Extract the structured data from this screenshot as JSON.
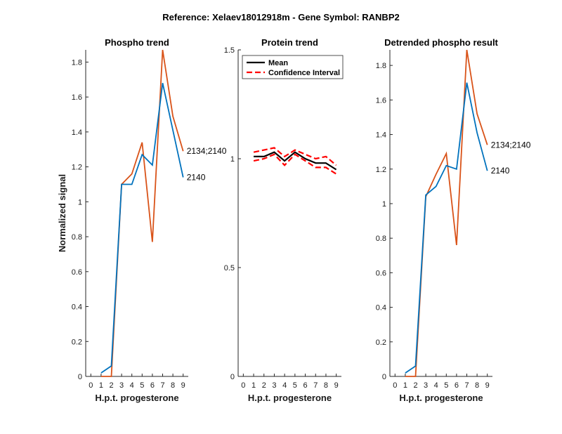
{
  "figure_title": "Reference:  Xelaev18012918m - Gene Symbol:  RANBP2",
  "colors": {
    "blue": "#0072BD",
    "orange": "#D95319",
    "black": "#000000",
    "red": "#FF0000"
  },
  "chart_data": [
    {
      "type": "line",
      "title": "Phospho trend",
      "xlabel": "H.p.t. progesterone",
      "ylabel": "Normalized signal",
      "x": [
        0,
        1,
        2,
        3,
        4,
        5,
        6,
        7,
        8,
        9
      ],
      "xlim": [
        -0.5,
        9.5
      ],
      "ylim": [
        0,
        1.87
      ],
      "xticks": [
        0,
        1,
        2,
        3,
        4,
        5,
        6,
        7,
        8,
        9
      ],
      "yticks": [
        0,
        0.2,
        0.4,
        0.6,
        0.8,
        1,
        1.2,
        1.4,
        1.6,
        1.8
      ],
      "ytick_labels": [
        "0",
        "0.2",
        "0.4",
        "0.6",
        "0.8",
        "1",
        "1.2",
        "1.4",
        "1.6",
        "1.8"
      ],
      "series": [
        {
          "name": "2134;2140",
          "color": "#D95319",
          "values": [
            null,
            0,
            0,
            1.1,
            1.16,
            1.34,
            0.77,
            1.87,
            1.49,
            1.29
          ]
        },
        {
          "name": "2140",
          "color": "#0072BD",
          "values": [
            null,
            0.02,
            0.06,
            1.1,
            1.1,
            1.27,
            1.21,
            1.68,
            1.41,
            1.14
          ]
        }
      ]
    },
    {
      "type": "line",
      "title": "Protein trend",
      "xlabel": "H.p.t. progesterone",
      "ylabel": "",
      "x": [
        0,
        1,
        2,
        3,
        4,
        5,
        6,
        7,
        8,
        9
      ],
      "xlim": [
        -0.5,
        9.5
      ],
      "ylim": [
        0,
        1.5
      ],
      "xticks": [
        0,
        1,
        2,
        3,
        4,
        5,
        6,
        7,
        8,
        9
      ],
      "yticks": [
        0,
        0.5,
        1,
        1.5
      ],
      "ytick_labels": [
        "0",
        "0.5",
        "1",
        "1.5"
      ],
      "legend": {
        "placement": "top-left",
        "entries": [
          "Mean",
          "Confidence Interval"
        ]
      },
      "series": [
        {
          "name": "Mean",
          "color": "#000000",
          "style": "solid",
          "values": [
            null,
            1.01,
            1.01,
            1.03,
            0.99,
            1.03,
            1.0,
            0.98,
            0.98,
            0.95
          ]
        },
        {
          "name": "Confidence Interval",
          "color": "#FF0000",
          "style": "dashed",
          "values": [
            null,
            1.03,
            1.04,
            1.05,
            1.01,
            1.04,
            1.02,
            1.0,
            1.01,
            0.97
          ]
        },
        {
          "name": "Confidence Interval",
          "color": "#FF0000",
          "style": "dashed",
          "values": [
            null,
            0.99,
            1.0,
            1.02,
            0.97,
            1.02,
            0.99,
            0.96,
            0.96,
            0.93
          ]
        }
      ]
    },
    {
      "type": "line",
      "title": "Detrended phospho result",
      "xlabel": "H.p.t. progesterone",
      "ylabel": "",
      "x": [
        0,
        1,
        2,
        3,
        4,
        5,
        6,
        7,
        8,
        9
      ],
      "xlim": [
        -0.5,
        9.5
      ],
      "ylim": [
        0,
        1.89
      ],
      "xticks": [
        0,
        1,
        2,
        3,
        4,
        5,
        6,
        7,
        8,
        9
      ],
      "yticks": [
        0,
        0.2,
        0.4,
        0.6,
        0.8,
        1,
        1.2,
        1.4,
        1.6,
        1.8
      ],
      "ytick_labels": [
        "0",
        "0.2",
        "0.4",
        "0.6",
        "0.8",
        "1",
        "1.2",
        "1.4",
        "1.6",
        "1.8"
      ],
      "series": [
        {
          "name": "2134;2140",
          "color": "#D95319",
          "values": [
            null,
            0,
            0,
            1.04,
            1.17,
            1.29,
            0.76,
            1.89,
            1.52,
            1.34
          ]
        },
        {
          "name": "2140",
          "color": "#0072BD",
          "values": [
            null,
            0.02,
            0.06,
            1.05,
            1.1,
            1.22,
            1.2,
            1.7,
            1.41,
            1.19
          ]
        }
      ]
    }
  ]
}
